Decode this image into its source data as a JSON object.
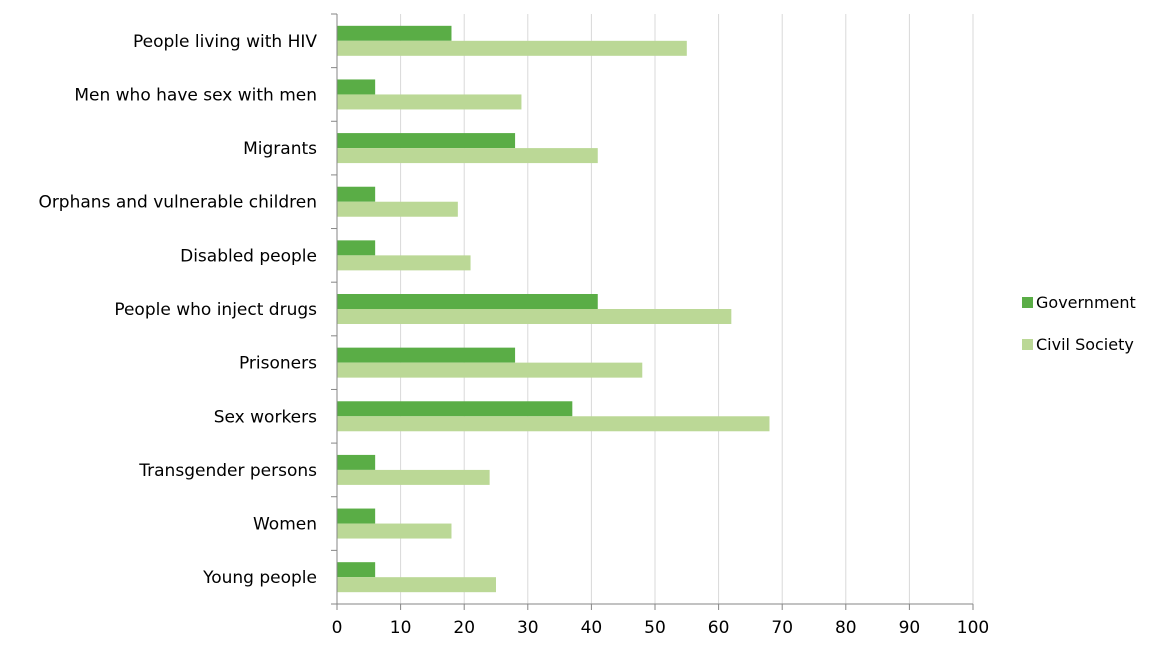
{
  "chart_data": {
    "type": "bar",
    "orientation": "horizontal",
    "categories": [
      "People living with HIV",
      "Men who have sex with men",
      "Migrants",
      "Orphans and vulnerable children",
      "Disabled people",
      "People who inject drugs",
      "Prisoners",
      "Sex workers",
      "Transgender persons",
      "Women",
      "Young people"
    ],
    "series": [
      {
        "name": "Government",
        "color": "#5aad46",
        "values": [
          18,
          6,
          28,
          6,
          6,
          41,
          28,
          37,
          6,
          6,
          6
        ]
      },
      {
        "name": "Civil Society",
        "color": "#bbd896",
        "values": [
          55,
          29,
          41,
          19,
          21,
          62,
          48,
          68,
          24,
          18,
          25
        ]
      }
    ],
    "xlim": [
      0,
      100
    ],
    "xticks": [
      "0",
      "10",
      "20",
      "30",
      "40",
      "50",
      "60",
      "70",
      "80",
      "90",
      "100"
    ],
    "grid": true,
    "legend_position": "right"
  }
}
